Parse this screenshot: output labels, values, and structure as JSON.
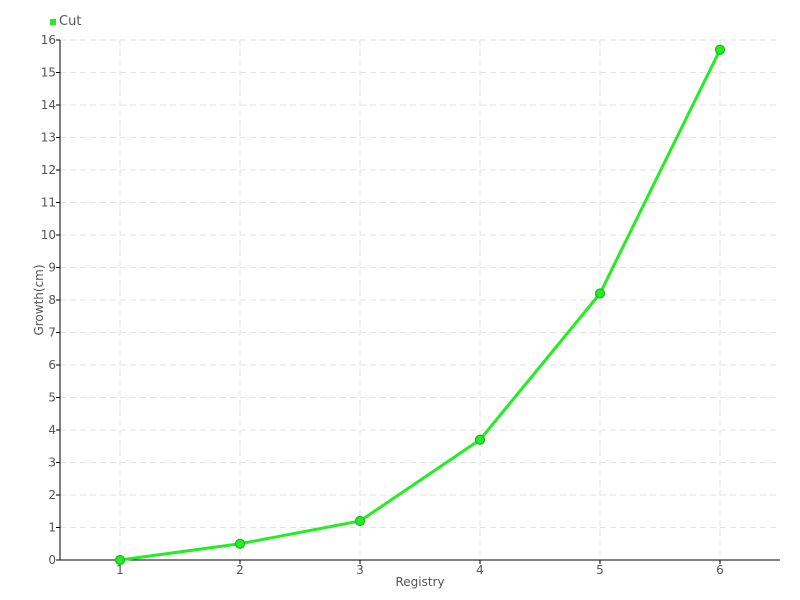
{
  "chart_data": {
    "type": "line",
    "title": "",
    "xlabel": "Registry",
    "ylabel": "Growth(cm)",
    "x": [
      1,
      2,
      3,
      4,
      5,
      6
    ],
    "series": [
      {
        "name": "Cut",
        "color": "#22ee22",
        "values": [
          0,
          0.5,
          1.2,
          3.7,
          8.2,
          15.7
        ]
      }
    ],
    "xlim": [
      0.5,
      6.5
    ],
    "ylim": [
      0,
      16
    ],
    "xticks": [
      1,
      2,
      3,
      4,
      5,
      6
    ],
    "yticks": [
      0,
      1,
      2,
      3,
      4,
      5,
      6,
      7,
      8,
      9,
      10,
      11,
      12,
      13,
      14,
      15,
      16
    ],
    "grid": true,
    "legend": "top-left"
  }
}
